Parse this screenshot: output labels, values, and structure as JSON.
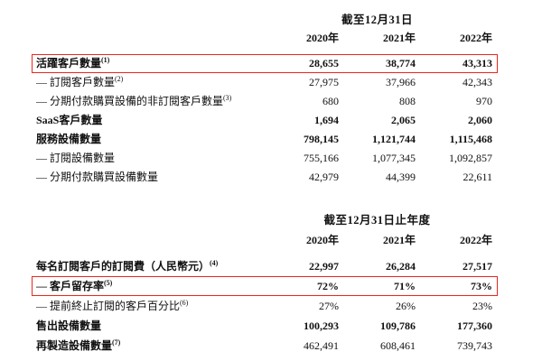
{
  "accent": {
    "highlight_box_color": "#e8281e"
  },
  "table1": {
    "period_header": "截至12月31日",
    "col_headers": [
      "2020年",
      "2021年",
      "2022年"
    ],
    "rows": [
      {
        "label": "活躍客戶數量",
        "note": "(1)",
        "values": [
          "28,655",
          "38,774",
          "43,313"
        ]
      },
      {
        "label": "— 訂閱客戶數量",
        "note": "(2)",
        "values": [
          "27,975",
          "37,966",
          "42,343"
        ]
      },
      {
        "label": "— 分期付款購買設備的非訂閱客戶數量",
        "note": "(3)",
        "values": [
          "680",
          "808",
          "970"
        ]
      },
      {
        "label": "SaaS客戶數量",
        "note": "",
        "values": [
          "1,694",
          "2,065",
          "2,060"
        ]
      },
      {
        "label": "服務設備數量",
        "note": "",
        "values": [
          "798,145",
          "1,121,744",
          "1,115,468"
        ]
      },
      {
        "label": "— 訂閱設備數量",
        "note": "",
        "values": [
          "755,166",
          "1,077,345",
          "1,092,857"
        ]
      },
      {
        "label": "— 分期付款購買設備數量",
        "note": "",
        "values": [
          "42,979",
          "44,399",
          "22,611"
        ]
      }
    ]
  },
  "table2": {
    "period_header": "截至12月31日止年度",
    "col_headers": [
      "2020年",
      "2021年",
      "2022年"
    ],
    "rows": [
      {
        "label": "每名訂閱客戶的訂閱費（人民幣元）",
        "note": "(4)",
        "values": [
          "22,997",
          "26,284",
          "27,517"
        ]
      },
      {
        "label": "— 客戶留存率",
        "note": "(5)",
        "values": [
          "72%",
          "71%",
          "73%"
        ]
      },
      {
        "label": "— 提前終止訂閱的客戶百分比",
        "note": "(6)",
        "values": [
          "27%",
          "26%",
          "23%"
        ]
      },
      {
        "label": "售出設備數量",
        "note": "",
        "values": [
          "100,293",
          "109,786",
          "177,360"
        ]
      },
      {
        "label": "再製造設備數量",
        "note": "(7)",
        "values": [
          "462,491",
          "608,461",
          "739,743"
        ]
      }
    ]
  }
}
